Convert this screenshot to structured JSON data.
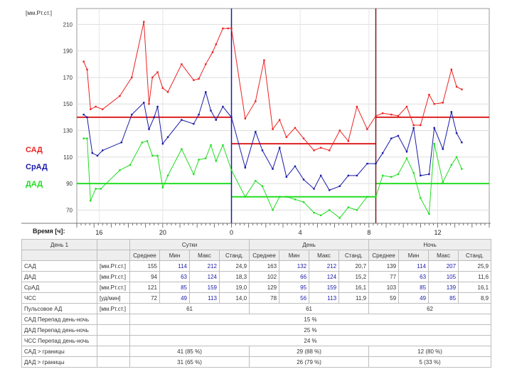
{
  "chart_data": {
    "type": "line",
    "ylabel": "[мм.Рт.ст.]",
    "y_ticks": [
      70,
      90,
      110,
      130,
      150,
      170,
      190,
      210
    ],
    "ylim": [
      60,
      222
    ],
    "xlim": [
      0,
      24
    ],
    "x_axis_label": "Время [ч]:",
    "x_ticks": [
      {
        "x": 1.3,
        "label": "16"
      },
      {
        "x": 5.0,
        "label": "20"
      },
      {
        "x": 9.0,
        "label": "0"
      },
      {
        "x": 13.0,
        "label": "4"
      },
      {
        "x": 17.0,
        "label": "8"
      },
      {
        "x": 21.0,
        "label": "12"
      }
    ],
    "period_dividers": [
      {
        "x": 9.0,
        "color": "#1a1aa8"
      },
      {
        "x": 17.4,
        "color": "#7a1a1a"
      }
    ],
    "grid": true,
    "legend": [
      {
        "label": "САД",
        "color": "#ee2222"
      },
      {
        "label": "СрАД",
        "color": "#1a1aa8"
      },
      {
        "label": "ДАД",
        "color": "#22dd22"
      }
    ],
    "thresholds": [
      {
        "series": "САД",
        "color": "#dd2222",
        "segments": [
          [
            0,
            9,
            140
          ],
          [
            9,
            17.4,
            120
          ],
          [
            17.4,
            24,
            140
          ]
        ]
      },
      {
        "series": "ДАД",
        "color": "#22dd22",
        "segments": [
          [
            0,
            9,
            90
          ],
          [
            9,
            17.4,
            80
          ],
          [
            17.4,
            24,
            90
          ]
        ]
      }
    ],
    "series": [
      {
        "name": "САД",
        "color": "#ee2222",
        "x": [
          0.4,
          0.6,
          0.8,
          1.1,
          1.5,
          2.5,
          3.2,
          3.9,
          4.2,
          4.4,
          4.7,
          5.0,
          5.3,
          6.1,
          6.8,
          7.1,
          7.5,
          7.9,
          8.1,
          8.5,
          8.8,
          9.0,
          9.8,
          10.4,
          10.9,
          11.4,
          11.8,
          12.2,
          12.7,
          13.2,
          13.8,
          14.2,
          14.7,
          15.3,
          15.8,
          16.3,
          16.9,
          17.4,
          17.8,
          18.3,
          18.7,
          19.2,
          19.6,
          20.0,
          20.5,
          20.8,
          21.3,
          21.8,
          22.1,
          22.4
        ],
        "y": [
          182,
          176,
          146,
          148,
          146,
          156,
          170,
          212,
          150,
          170,
          174,
          162,
          159,
          180,
          168,
          169,
          180,
          189,
          195,
          207,
          207,
          207,
          139,
          152,
          183,
          131,
          138,
          125,
          132,
          124,
          115,
          117,
          115,
          130,
          122,
          148,
          131,
          141,
          143,
          142,
          141,
          148,
          134,
          134,
          157,
          150,
          151,
          176,
          163,
          161
        ]
      },
      {
        "name": "СрАД",
        "color": "#1a1aa8",
        "x": [
          0.4,
          0.6,
          0.9,
          1.2,
          1.5,
          2.6,
          3.2,
          3.9,
          4.2,
          4.5,
          4.7,
          5.0,
          5.3,
          6.1,
          6.8,
          7.1,
          7.5,
          7.8,
          8.1,
          8.5,
          9.0,
          9.8,
          10.4,
          10.8,
          11.4,
          11.8,
          12.2,
          12.7,
          13.2,
          13.8,
          14.2,
          14.7,
          15.3,
          15.8,
          16.3,
          16.9,
          17.4,
          17.8,
          18.3,
          18.7,
          19.2,
          19.6,
          20.0,
          20.5,
          20.8,
          21.3,
          21.8,
          22.1,
          22.4
        ],
        "y": [
          142,
          140,
          113,
          111,
          115,
          121,
          142,
          151,
          131,
          140,
          148,
          120,
          125,
          138,
          135,
          142,
          159,
          145,
          138,
          148,
          140,
          102,
          129,
          115,
          101,
          117,
          95,
          103,
          93,
          86,
          96,
          85,
          88,
          96,
          96,
          105,
          105,
          113,
          124,
          126,
          114,
          132,
          96,
          97,
          132,
          116,
          144,
          128,
          121
        ]
      },
      {
        "name": "ДАД",
        "color": "#22dd22",
        "x": [
          0.4,
          0.6,
          0.8,
          1.1,
          1.4,
          2.5,
          3.1,
          3.8,
          4.1,
          4.4,
          4.7,
          5.0,
          5.3,
          6.1,
          6.8,
          7.1,
          7.5,
          7.8,
          8.1,
          8.5,
          9.0,
          9.8,
          10.4,
          10.8,
          11.4,
          11.8,
          12.2,
          12.7,
          13.2,
          13.8,
          14.2,
          14.7,
          15.3,
          15.8,
          16.3,
          16.9,
          17.4,
          17.8,
          18.3,
          18.7,
          19.2,
          19.6,
          20.0,
          20.5,
          20.8,
          21.3,
          21.8,
          22.1,
          22.4
        ],
        "y": [
          124,
          124,
          77,
          86,
          86,
          100,
          104,
          121,
          122,
          111,
          111,
          87,
          96,
          116,
          97,
          108,
          109,
          119,
          107,
          119,
          100,
          80,
          92,
          88,
          70,
          80,
          80,
          78,
          76,
          68,
          66,
          70,
          64,
          72,
          70,
          80,
          80,
          96,
          95,
          97,
          109,
          98,
          79,
          67,
          120,
          91,
          104,
          110,
          101
        ]
      }
    ]
  },
  "table": {
    "title": "День 1",
    "group_headers": [
      "Сутки",
      "День",
      "Ночь"
    ],
    "sub_headers": [
      "Среднее",
      "Мин",
      "Макс",
      "Станд."
    ],
    "rows": [
      {
        "label": "САД",
        "unit": "[мм.Рт.ст.]",
        "values": [
          "155",
          "114",
          "212",
          "24,9",
          "163",
          "132",
          "212",
          "20,7",
          "139",
          "114",
          "207",
          "25,9"
        ]
      },
      {
        "label": "ДАД",
        "unit": "[мм.Рт.ст.]",
        "values": [
          "94",
          "63",
          "124",
          "18,3",
          "102",
          "66",
          "124",
          "15,2",
          "77",
          "63",
          "105",
          "11,6"
        ]
      },
      {
        "label": "СрАД",
        "unit": "[мм.Рт.ст.]",
        "values": [
          "121",
          "85",
          "159",
          "19,0",
          "129",
          "95",
          "159",
          "16,1",
          "103",
          "85",
          "139",
          "16,1"
        ]
      },
      {
        "label": "ЧСС",
        "unit": "[уд/мин]",
        "values": [
          "72",
          "49",
          "113",
          "14,0",
          "78",
          "56",
          "113",
          "11,9",
          "59",
          "49",
          "85",
          "8,9"
        ]
      }
    ],
    "pulse_row": {
      "label": "Пульсовое АД",
      "unit": "[мм.Рт.ст.]",
      "values": [
        "61",
        "61",
        "62"
      ]
    },
    "diff_rows": [
      {
        "label": "САД Перепад день-ночь",
        "value": "15 %"
      },
      {
        "label": "ДАД Перепад день-ночь",
        "value": "25 %"
      },
      {
        "label": "ЧСС Перепад день-ночь",
        "value": "24 %"
      }
    ],
    "limit_rows": [
      {
        "label": "САД > границы",
        "values": [
          "41 (85 %)",
          "29 (88 %)",
          "12 (80 %)"
        ]
      },
      {
        "label": "ДАД > границы",
        "values": [
          "31 (65 %)",
          "26 (79 %)",
          "5 (33 %)"
        ]
      }
    ]
  }
}
